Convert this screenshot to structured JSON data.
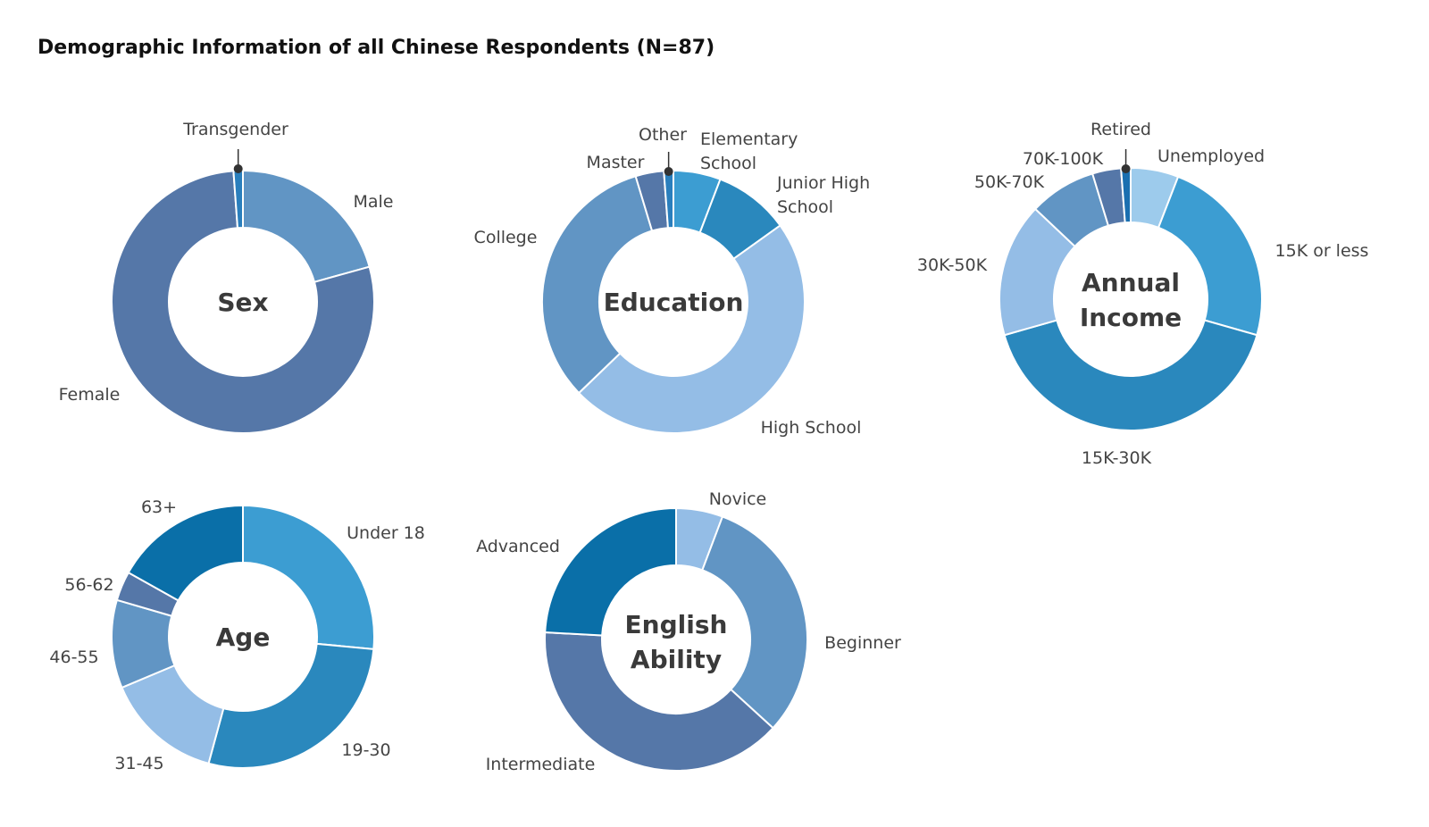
{
  "title": "Demographic Information of all Chinese Respondents (N=87)",
  "chart_data": [
    {
      "type": "pie",
      "title": "Sex",
      "center_label": [
        "Sex"
      ],
      "slices": [
        {
          "label": [
            "Male"
          ],
          "value": 18,
          "color": "#6195c4"
        },
        {
          "label": [
            "Female"
          ],
          "value": 68,
          "color": "#5577a8"
        },
        {
          "label": [
            "Transgender"
          ],
          "value": 1,
          "color": "#2a7fbd",
          "marker": true
        }
      ]
    },
    {
      "type": "pie",
      "title": "Education",
      "center_label": [
        "Education"
      ],
      "slices": [
        {
          "label": [
            "Elementary",
            "School"
          ],
          "value": 5,
          "color": "#3c9dd2"
        },
        {
          "label": [
            "Junior High",
            "School"
          ],
          "value": 8,
          "color": "#2a88bd"
        },
        {
          "label": [
            "High School"
          ],
          "value": 41,
          "color": "#94bde6"
        },
        {
          "label": [
            "College"
          ],
          "value": 28,
          "color": "#6195c4"
        },
        {
          "label": [
            "Master"
          ],
          "value": 3,
          "color": "#5577a8"
        },
        {
          "label": [
            "Other"
          ],
          "value": 1,
          "color": "#2a7fbd",
          "marker": true
        }
      ]
    },
    {
      "type": "pie",
      "title": "Annual Income",
      "center_label": [
        "Annual",
        "Income"
      ],
      "slices": [
        {
          "label": [
            "Unemployed"
          ],
          "value": 5,
          "color": "#9dcbec"
        },
        {
          "label": [
            "15K or less"
          ],
          "value": 20,
          "color": "#3c9dd2"
        },
        {
          "label": [
            "15K-30K"
          ],
          "value": 35,
          "color": "#2a88bd"
        },
        {
          "label": [
            "30K-50K"
          ],
          "value": 14,
          "color": "#94bde6"
        },
        {
          "label": [
            "50K-70K"
          ],
          "value": 7,
          "color": "#6195c4"
        },
        {
          "label": [
            "70K-100K"
          ],
          "value": 3,
          "color": "#5577a8"
        },
        {
          "label": [
            "Retired"
          ],
          "value": 1,
          "color": "#1a6fb0",
          "marker": true
        }
      ]
    },
    {
      "type": "pie",
      "title": "Age",
      "center_label": [
        "Age"
      ],
      "slices": [
        {
          "label": [
            "Under 18"
          ],
          "value": 22,
          "color": "#3c9dd2"
        },
        {
          "label": [
            "19-30"
          ],
          "value": 23,
          "color": "#2a88bd"
        },
        {
          "label": [
            "31-45"
          ],
          "value": 12,
          "color": "#94bde6"
        },
        {
          "label": [
            "46-55"
          ],
          "value": 9,
          "color": "#6195c4"
        },
        {
          "label": [
            "56-62"
          ],
          "value": 3,
          "color": "#5577a8"
        },
        {
          "label": [
            "63+"
          ],
          "value": 14,
          "color": "#0a6fa8"
        }
      ]
    },
    {
      "type": "pie",
      "title": "English Ability",
      "center_label": [
        "English",
        "Ability"
      ],
      "slices": [
        {
          "label": [
            "Novice"
          ],
          "value": 5,
          "color": "#94bde6"
        },
        {
          "label": [
            "Beginner"
          ],
          "value": 27,
          "color": "#6195c4"
        },
        {
          "label": [
            "Intermediate"
          ],
          "value": 34,
          "color": "#5577a8"
        },
        {
          "label": [
            "Advanced"
          ],
          "value": 21,
          "color": "#0a6fa8"
        }
      ]
    }
  ]
}
